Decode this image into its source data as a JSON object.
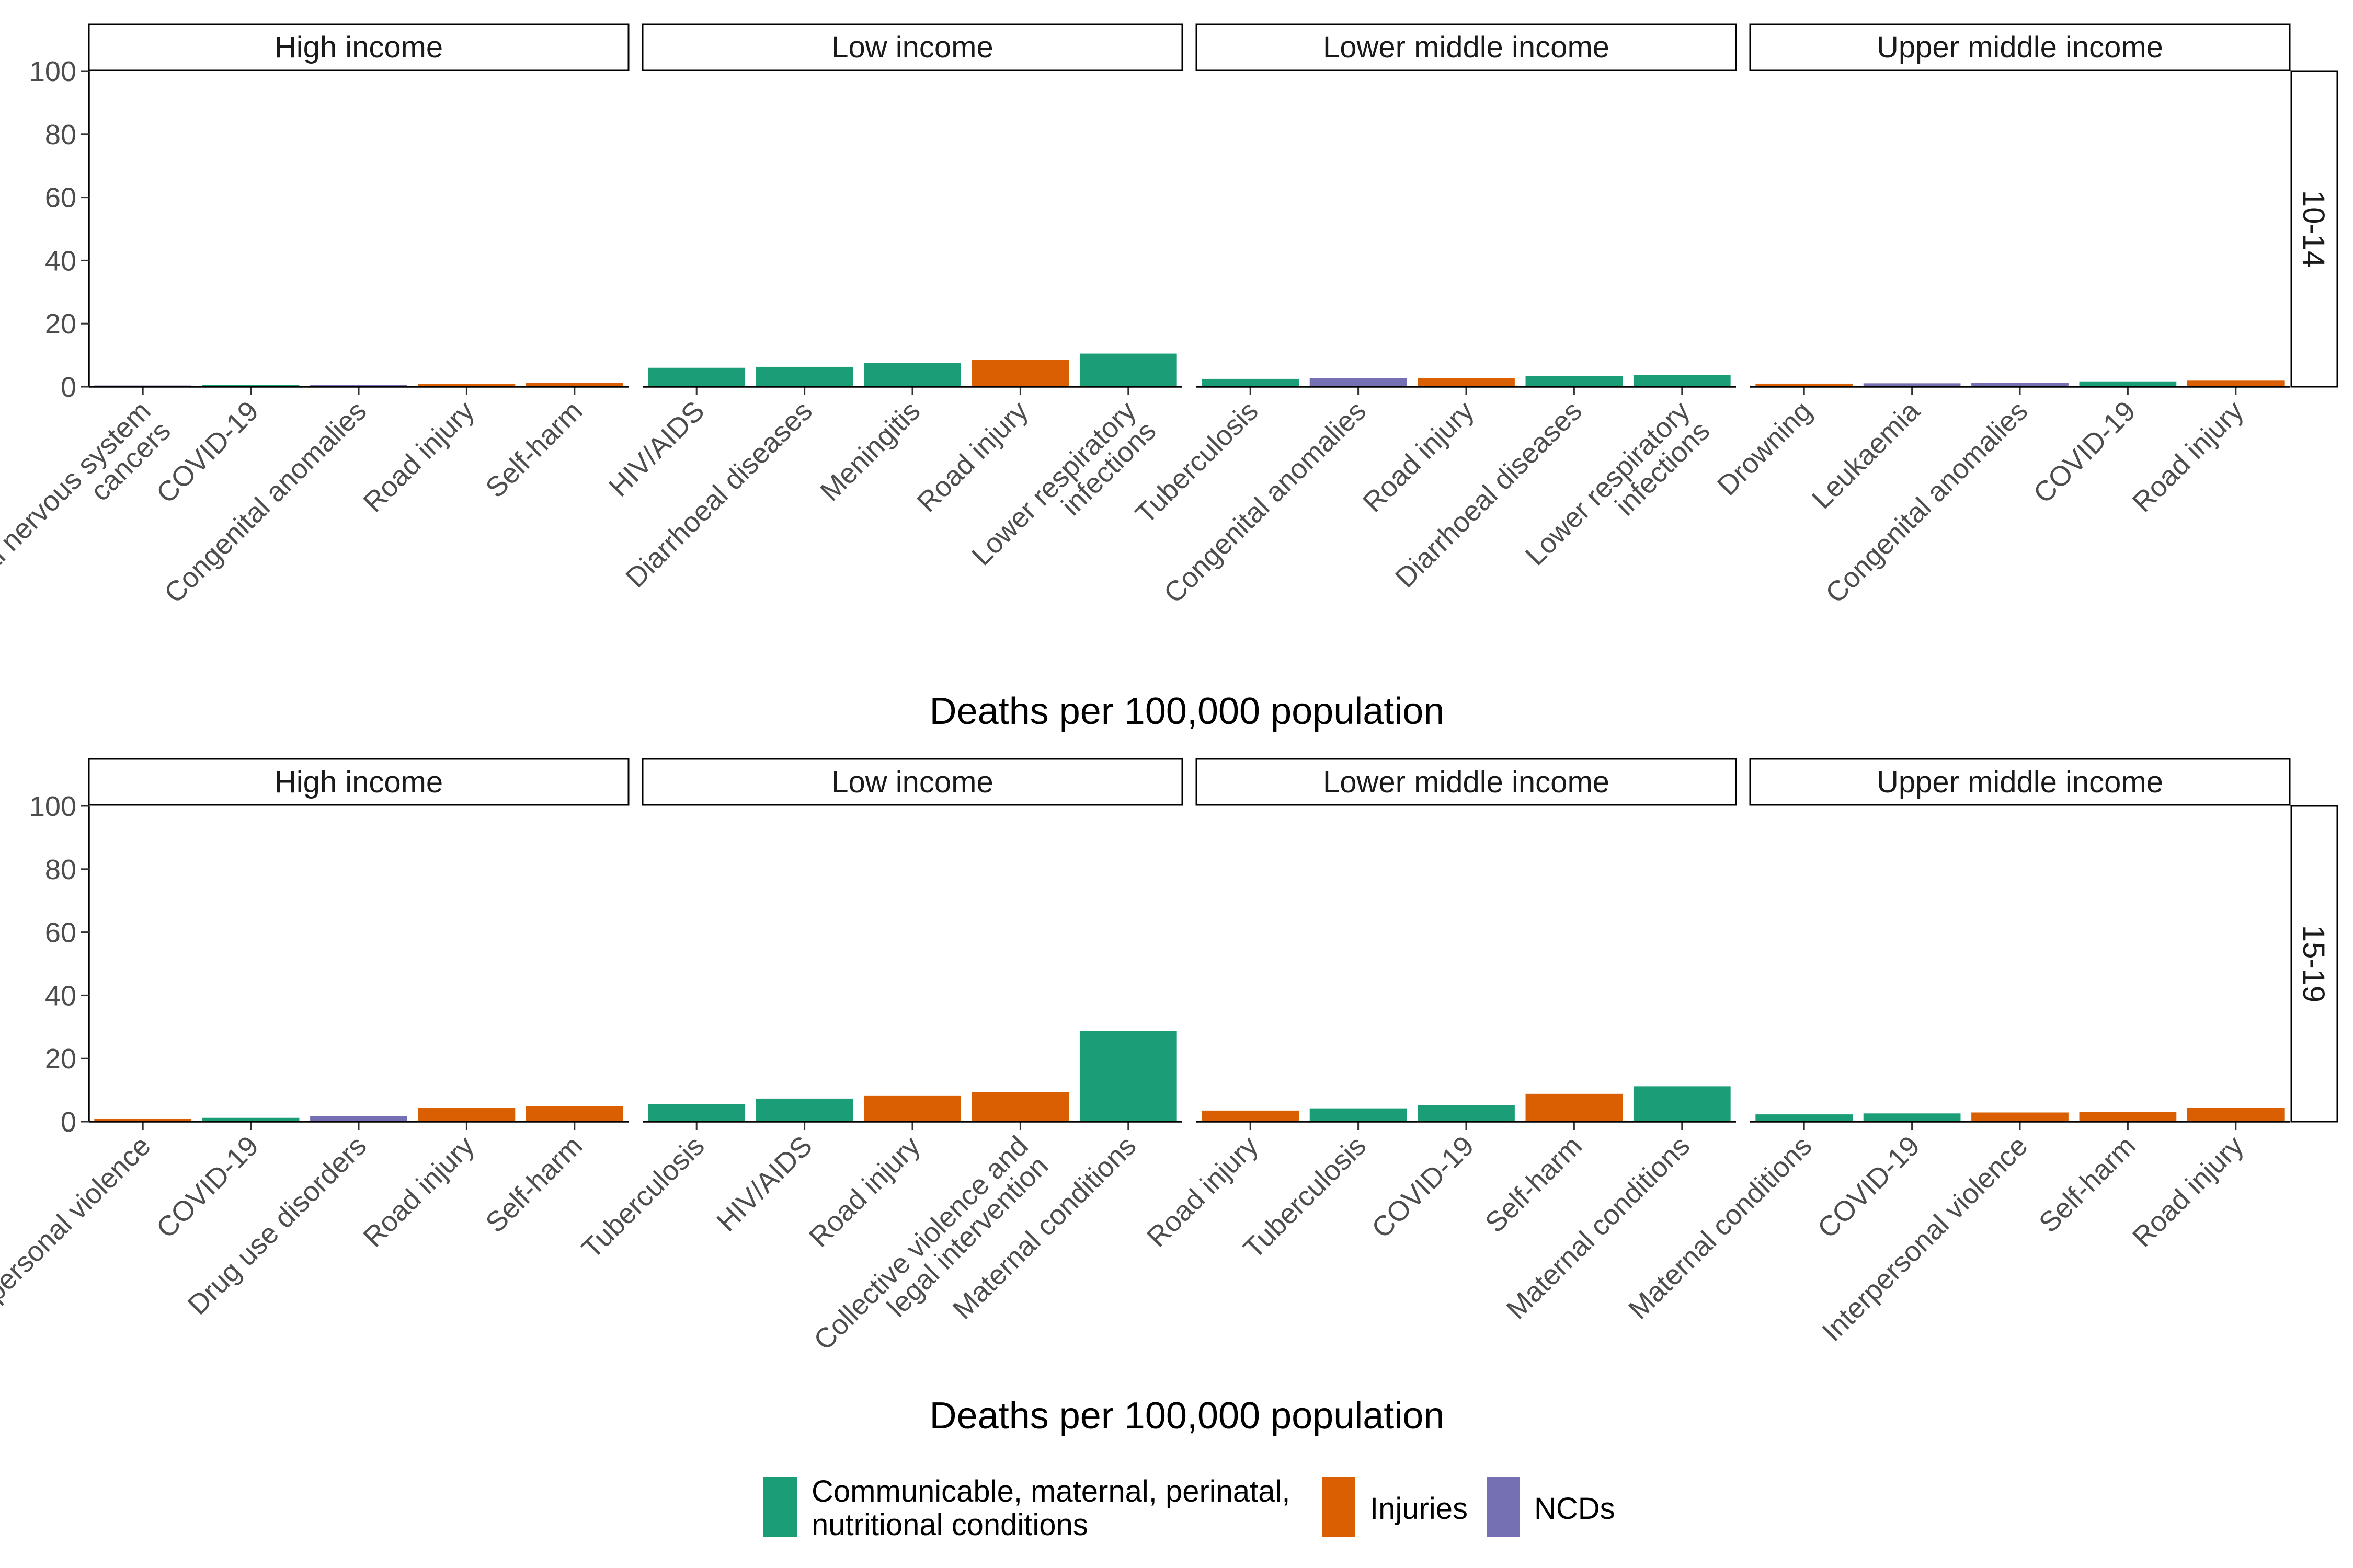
{
  "chart_data": {
    "type": "bar",
    "layout": "faceted horizontal bars drawn vertically: rows = age group, columns = income group",
    "ylim": [
      0,
      100
    ],
    "yticks": [
      "0",
      "20",
      "40",
      "60",
      "80",
      "100"
    ],
    "xlabel": "Deaths per 100,000 population",
    "grid": false,
    "legend_position": "bottom",
    "colors": {
      "Communicable, maternal, perinatal, nutritional conditions": "#1b9e77",
      "Injuries": "#d95f02",
      "NCDs": "#7570b3"
    },
    "legend": [
      {
        "name": "Communicable, maternal, perinatal, nutritional conditions",
        "lines": [
          "Communicable, maternal, perinatal,",
          "nutritional conditions"
        ]
      },
      {
        "name": "Injuries",
        "lines": [
          "Injuries"
        ]
      },
      {
        "name": "NCDs",
        "lines": [
          "NCDs"
        ]
      }
    ],
    "rows": [
      {
        "age": "10-14",
        "panels": [
          {
            "income": "High income",
            "bars": [
              {
                "lines": [
                  "Brain and central nervous system",
                  "cancers"
                ],
                "value": 0.4,
                "group": "NCDs"
              },
              {
                "lines": [
                  "COVID-19"
                ],
                "value": 0.5,
                "group": "Communicable, maternal, perinatal, nutritional conditions"
              },
              {
                "lines": [
                  "Congenital anomalies"
                ],
                "value": 0.6,
                "group": "NCDs"
              },
              {
                "lines": [
                  "Road injury"
                ],
                "value": 0.9,
                "group": "Injuries"
              },
              {
                "lines": [
                  "Self-harm"
                ],
                "value": 1.2,
                "group": "Injuries"
              }
            ]
          },
          {
            "income": "Low income",
            "bars": [
              {
                "lines": [
                  "HIV/AIDS"
                ],
                "value": 6.0,
                "group": "Communicable, maternal, perinatal, nutritional conditions"
              },
              {
                "lines": [
                  "Diarrhoeal diseases"
                ],
                "value": 6.3,
                "group": "Communicable, maternal, perinatal, nutritional conditions"
              },
              {
                "lines": [
                  "Meningitis"
                ],
                "value": 7.6,
                "group": "Communicable, maternal, perinatal, nutritional conditions"
              },
              {
                "lines": [
                  "Road injury"
                ],
                "value": 8.6,
                "group": "Injuries"
              },
              {
                "lines": [
                  "Lower respiratory",
                  "infections"
                ],
                "value": 10.5,
                "group": "Communicable, maternal, perinatal, nutritional conditions"
              }
            ]
          },
          {
            "income": "Lower middle income",
            "bars": [
              {
                "lines": [
                  "Tuberculosis"
                ],
                "value": 2.5,
                "group": "Communicable, maternal, perinatal, nutritional conditions"
              },
              {
                "lines": [
                  "Congenital anomalies"
                ],
                "value": 2.7,
                "group": "NCDs"
              },
              {
                "lines": [
                  "Road injury"
                ],
                "value": 2.8,
                "group": "Injuries"
              },
              {
                "lines": [
                  "Diarrhoeal diseases"
                ],
                "value": 3.4,
                "group": "Communicable, maternal, perinatal, nutritional conditions"
              },
              {
                "lines": [
                  "Lower respiratory",
                  "infections"
                ],
                "value": 3.8,
                "group": "Communicable, maternal, perinatal, nutritional conditions"
              }
            ]
          },
          {
            "income": "Upper middle income",
            "bars": [
              {
                "lines": [
                  "Drowning"
                ],
                "value": 1.0,
                "group": "Injuries"
              },
              {
                "lines": [
                  "Leukaemia"
                ],
                "value": 1.1,
                "group": "NCDs"
              },
              {
                "lines": [
                  "Congenital anomalies"
                ],
                "value": 1.3,
                "group": "NCDs"
              },
              {
                "lines": [
                  "COVID-19"
                ],
                "value": 1.7,
                "group": "Communicable, maternal, perinatal, nutritional conditions"
              },
              {
                "lines": [
                  "Road injury"
                ],
                "value": 2.1,
                "group": "Injuries"
              }
            ]
          }
        ]
      },
      {
        "age": "15-19",
        "panels": [
          {
            "income": "High income",
            "bars": [
              {
                "lines": [
                  "Interpersonal violence"
                ],
                "value": 1.0,
                "group": "Injuries"
              },
              {
                "lines": [
                  "COVID-19"
                ],
                "value": 1.2,
                "group": "Communicable, maternal, perinatal, nutritional conditions"
              },
              {
                "lines": [
                  "Drug use disorders"
                ],
                "value": 1.8,
                "group": "NCDs"
              },
              {
                "lines": [
                  "Road injury"
                ],
                "value": 4.3,
                "group": "Injuries"
              },
              {
                "lines": [
                  "Self-harm"
                ],
                "value": 4.9,
                "group": "Injuries"
              }
            ]
          },
          {
            "income": "Low income",
            "bars": [
              {
                "lines": [
                  "Tuberculosis"
                ],
                "value": 5.5,
                "group": "Communicable, maternal, perinatal, nutritional conditions"
              },
              {
                "lines": [
                  "HIV/AIDS"
                ],
                "value": 7.3,
                "group": "Communicable, maternal, perinatal, nutritional conditions"
              },
              {
                "lines": [
                  "Road injury"
                ],
                "value": 8.3,
                "group": "Injuries"
              },
              {
                "lines": [
                  "Collective violence and",
                  "legal intervention"
                ],
                "value": 9.4,
                "group": "Injuries"
              },
              {
                "lines": [
                  "Maternal conditions"
                ],
                "value": 28.7,
                "group": "Communicable, maternal, perinatal, nutritional conditions"
              }
            ]
          },
          {
            "income": "Lower middle income",
            "bars": [
              {
                "lines": [
                  "Road injury"
                ],
                "value": 3.5,
                "group": "Injuries"
              },
              {
                "lines": [
                  "Tuberculosis"
                ],
                "value": 4.2,
                "group": "Communicable, maternal, perinatal, nutritional conditions"
              },
              {
                "lines": [
                  "COVID-19"
                ],
                "value": 5.2,
                "group": "Communicable, maternal, perinatal, nutritional conditions"
              },
              {
                "lines": [
                  "Self-harm"
                ],
                "value": 8.8,
                "group": "Injuries"
              },
              {
                "lines": [
                  "Maternal conditions"
                ],
                "value": 11.2,
                "group": "Communicable, maternal, perinatal, nutritional conditions"
              }
            ]
          },
          {
            "income": "Upper middle income",
            "bars": [
              {
                "lines": [
                  "Maternal conditions"
                ],
                "value": 2.3,
                "group": "Communicable, maternal, perinatal, nutritional conditions"
              },
              {
                "lines": [
                  "COVID-19"
                ],
                "value": 2.6,
                "group": "Communicable, maternal, perinatal, nutritional conditions"
              },
              {
                "lines": [
                  "Interpersonal violence"
                ],
                "value": 2.9,
                "group": "Injuries"
              },
              {
                "lines": [
                  "Self-harm"
                ],
                "value": 3.0,
                "group": "Injuries"
              },
              {
                "lines": [
                  "Road injury"
                ],
                "value": 4.4,
                "group": "Injuries"
              }
            ]
          }
        ]
      }
    ]
  }
}
